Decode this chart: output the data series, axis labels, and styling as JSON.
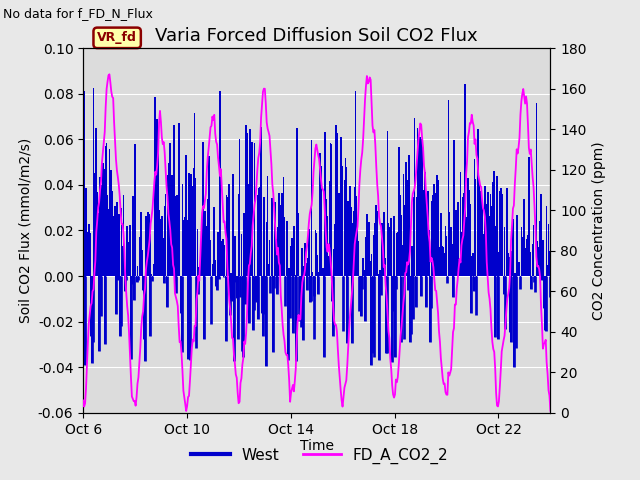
{
  "title": "Varia Forced Diffusion Soil CO2 Flux",
  "top_left_text": "No data for f_FD_N_Flux",
  "annotation_text": "VR_fd",
  "xlabel": "Time",
  "ylabel_left": "Soil CO2 Flux (mmol/m2/s)",
  "ylabel_right": "CO2 Concentration (ppm)",
  "ylim_left": [
    -0.06,
    0.1
  ],
  "ylim_right": [
    0,
    180
  ],
  "yticks_left": [
    -0.06,
    -0.04,
    -0.02,
    0.0,
    0.02,
    0.04,
    0.06,
    0.08,
    0.1
  ],
  "yticks_right": [
    0,
    20,
    40,
    60,
    80,
    100,
    120,
    140,
    160,
    180
  ],
  "xtick_labels": [
    "Oct 6",
    "Oct 10",
    "Oct 14",
    "Oct 18",
    "Oct 22"
  ],
  "xtick_pos": [
    0,
    4,
    8,
    12,
    16
  ],
  "xlim": [
    0,
    18
  ],
  "bg_color": "#e8e8e8",
  "plot_bg_color": "#dcdcdc",
  "blue_color": "#0000cc",
  "magenta_color": "#ff00ff",
  "legend_items": [
    "West",
    "FD_A_CO2_2"
  ],
  "title_fontsize": 13,
  "label_fontsize": 10,
  "tick_fontsize": 10,
  "annotation_box_facecolor": "#ffffaa",
  "annotation_box_edgecolor": "#8b0000",
  "seed": 42,
  "n_points": 500
}
